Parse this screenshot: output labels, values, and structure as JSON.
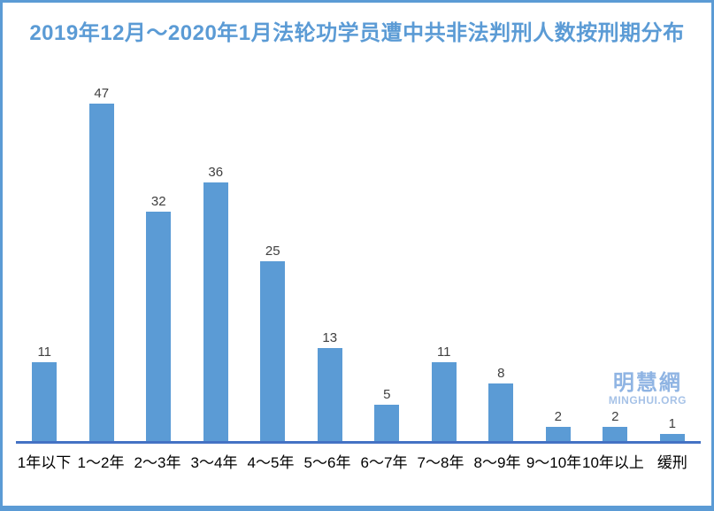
{
  "page": {
    "title": "2019年12月～2020年1月法轮功学员遭中共非法判刑人数按刑期分布"
  },
  "watermark": {
    "site_name": "明慧網",
    "site_domain": "MINGHUI.ORG"
  },
  "colors": {
    "border": "#5b9bd5",
    "title": "#5b9bd5",
    "bar": "#5b9bd5",
    "axis_line": "#4472c4",
    "value_label": "#404040",
    "watermark_cjk": "#8fb4e3",
    "watermark_latin": "#a6c2e7"
  },
  "chart_data": {
    "type": "bar",
    "title": "2019年12月～2020年1月法轮功学员遭中共非法判刑人数按刑期分布",
    "categories": [
      "1年以下",
      "1～2年",
      "2～3年",
      "3～4年",
      "4～5年",
      "5～6年",
      "6～7年",
      "7～8年",
      "8～9年",
      "9～10年",
      "10年以上",
      "缓刑"
    ],
    "values": [
      11,
      47,
      32,
      36,
      25,
      13,
      5,
      11,
      8,
      2,
      2,
      1
    ],
    "xlabel": "",
    "ylabel": "",
    "ylim": [
      0,
      47
    ],
    "grid": false,
    "legend": "none",
    "data_labels": true,
    "bar_color": "#5b9bd5"
  }
}
